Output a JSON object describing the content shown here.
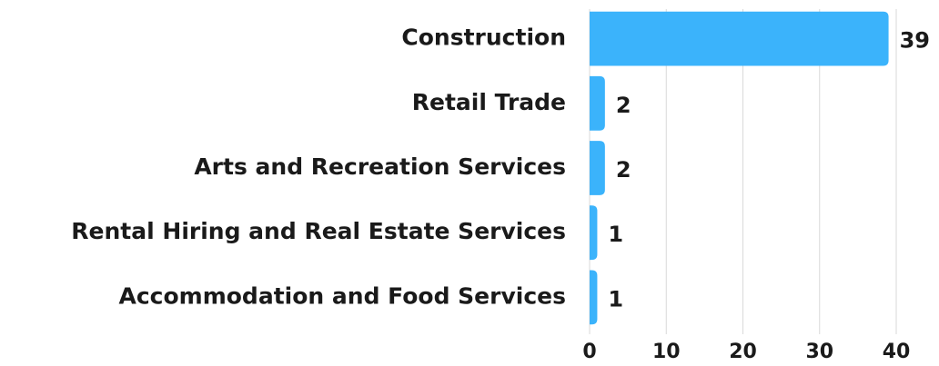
{
  "chart_data": {
    "type": "bar",
    "orientation": "horizontal",
    "categories": [
      "Construction",
      "Retail Trade",
      "Arts and Recreation Services",
      "Rental Hiring and Real Estate Services",
      "Accommodation and Food Services"
    ],
    "values": [
      39,
      2,
      2,
      1,
      1
    ],
    "color": "#3bb3fb",
    "xlim": [
      0,
      40
    ],
    "xticks": [
      0,
      10,
      20,
      30,
      40
    ],
    "grid": true
  }
}
